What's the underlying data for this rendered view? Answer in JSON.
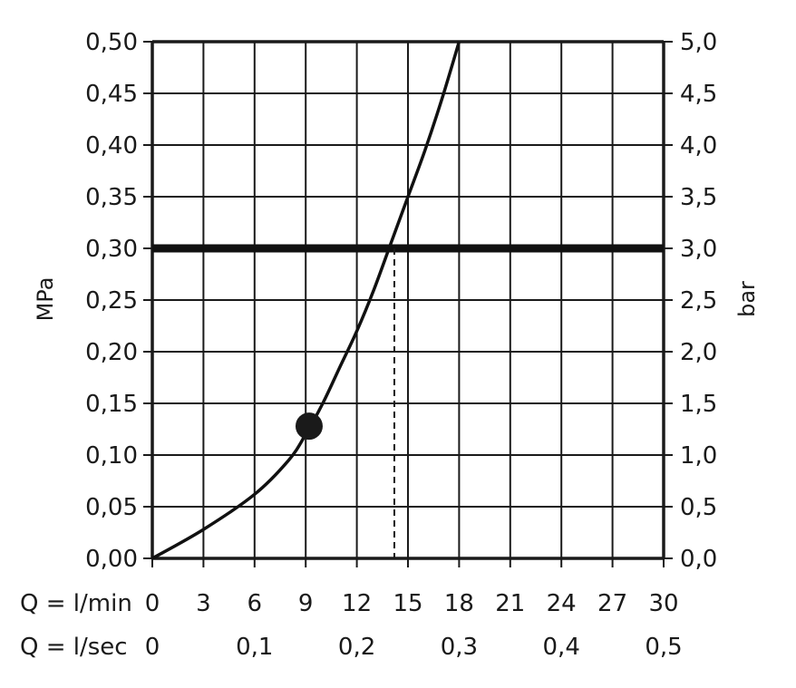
{
  "chart_data": {
    "type": "line",
    "title": "",
    "xlabel": "Q",
    "ylabel_left": "MPa",
    "ylabel_right": "bar",
    "x_unit_rows": [
      {
        "label": "Q = l/min",
        "ticks": [
          "0",
          "3",
          "6",
          "9",
          "12",
          "15",
          "18",
          "21",
          "24",
          "27",
          "30"
        ],
        "values": [
          0,
          3,
          6,
          9,
          12,
          15,
          18,
          21,
          24,
          27,
          30
        ]
      },
      {
        "label": "Q = l/sec",
        "ticks": [
          "0",
          "0,1",
          "0,2",
          "0,3",
          "0,4",
          "0,5"
        ],
        "values": [
          0,
          0.1,
          0.2,
          0.3,
          0.4,
          0.5
        ]
      }
    ],
    "y_left_ticks": [
      "0,00",
      "0,05",
      "0,10",
      "0,15",
      "0,20",
      "0,25",
      "0,30",
      "0,35",
      "0,40",
      "0,45",
      "0,50"
    ],
    "y_right_ticks": [
      "0,0",
      "0,5",
      "1,0",
      "1,5",
      "2,0",
      "2,5",
      "3,0",
      "3,5",
      "4,0",
      "4,5",
      "5,0"
    ],
    "xlim": [
      0,
      30
    ],
    "ylim": [
      0,
      0.5
    ],
    "grid": true,
    "series": [
      {
        "x": [
          0,
          3,
          6,
          8,
          9,
          10,
          11,
          12,
          13,
          14,
          15,
          16,
          17,
          18
        ],
        "y": [
          0,
          0.028,
          0.062,
          0.095,
          0.12,
          0.15,
          0.185,
          0.22,
          0.26,
          0.305,
          0.35,
          0.395,
          0.445,
          0.5
        ]
      }
    ],
    "reference_line": {
      "y": 0.3
    },
    "marked_point": {
      "x": 9.2,
      "y": 0.128
    },
    "drop_line": {
      "x": 14.2
    }
  }
}
